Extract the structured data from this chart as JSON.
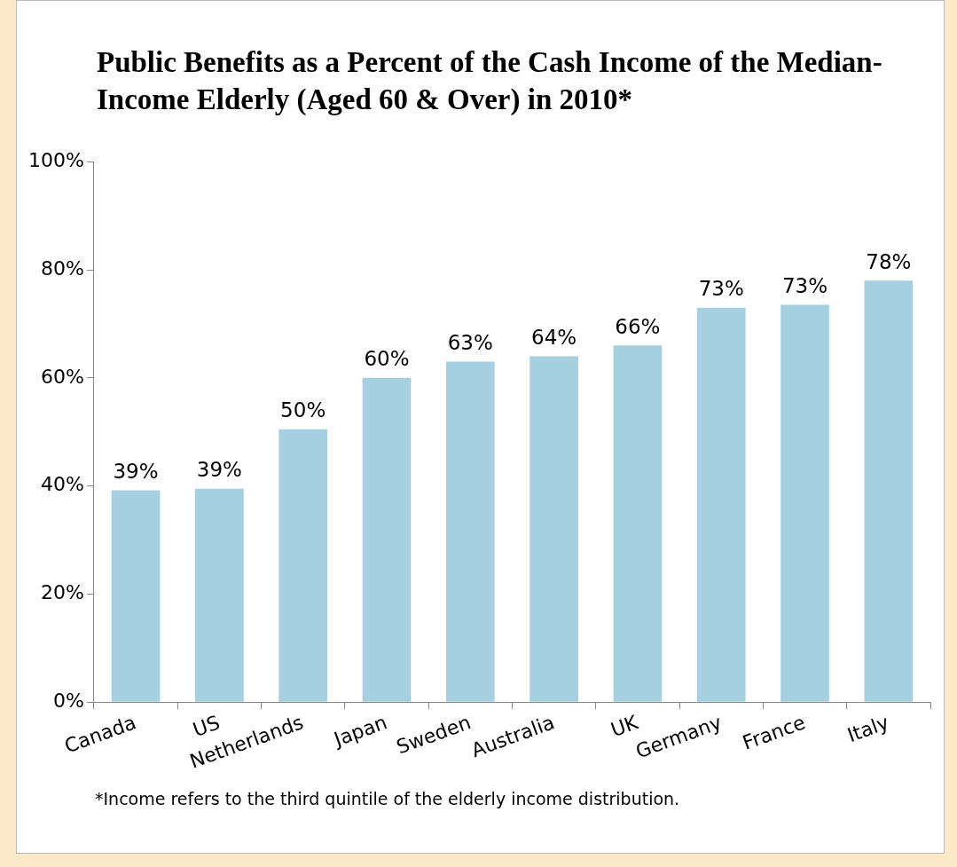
{
  "chart_data": {
    "type": "bar",
    "title": "Public Benefits as a Percent of the Cash Income of the Median-Income Elderly (Aged 60 & Over) in 2010*",
    "categories": [
      "Canada",
      "US",
      "Netherlands",
      "Japan",
      "Sweden",
      "Australia",
      "UK",
      "Germany",
      "France",
      "Italy"
    ],
    "values": [
      39.2,
      39.5,
      50.5,
      60,
      63,
      64,
      66,
      73,
      73.5,
      78
    ],
    "value_labels": [
      "39%",
      "39%",
      "50%",
      "60%",
      "63%",
      "64%",
      "66%",
      "73%",
      "73%",
      "78%"
    ],
    "color": "#a6cfdf",
    "ylim": [
      0,
      100
    ],
    "yticks": [
      {
        "value": 0,
        "label": "0%"
      },
      {
        "value": 20,
        "label": "20%"
      },
      {
        "value": 40,
        "label": "40%"
      },
      {
        "value": 60,
        "label": "60%"
      },
      {
        "value": 80,
        "label": "80%"
      },
      {
        "value": 100,
        "label": "100%"
      }
    ],
    "grid": false,
    "legend": false,
    "annotations": [
      "*Income refers to the third quintile of the elderly income distribution."
    ]
  }
}
